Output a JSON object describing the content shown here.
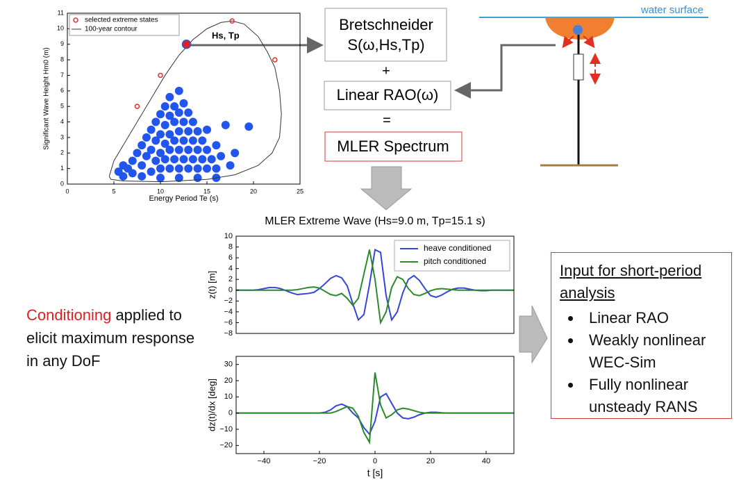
{
  "chart_data": [
    {
      "type": "scatter",
      "xlabel": "Energy Period Te (s)",
      "ylabel": "Significant Wave Height Hm0 (m)",
      "xlim": [
        0,
        25
      ],
      "ylim": [
        0,
        11
      ],
      "xticks": [
        0,
        5,
        10,
        15,
        20,
        25
      ],
      "yticks": [
        0,
        1,
        2,
        3,
        4,
        5,
        6,
        7,
        8,
        9,
        10,
        11
      ],
      "legend": "upper left",
      "annotation": "Hs, Tp",
      "points": {
        "color": "#2255ee",
        "x": [
          5.5,
          6,
          6.5,
          7,
          7,
          7.5,
          8,
          8,
          8.5,
          8.5,
          9,
          9,
          9,
          9.5,
          9.5,
          9.5,
          10,
          10,
          10,
          10,
          10.5,
          10.5,
          10.5,
          10.5,
          11,
          11,
          11,
          11,
          11,
          11.5,
          11.5,
          11.5,
          11.5,
          12,
          12,
          12,
          12,
          12,
          12.5,
          12.5,
          12.5,
          12.5,
          13,
          13,
          13,
          13,
          13.5,
          13.5,
          13.5,
          14,
          14,
          14,
          14.5,
          14.5,
          15,
          15,
          15,
          15.5,
          16,
          16,
          16.5,
          17,
          17.5,
          18,
          19.5,
          6,
          8,
          10,
          12,
          14,
          16
        ],
        "y": [
          0.8,
          1.2,
          1,
          1.5,
          0.7,
          2,
          1.2,
          2.5,
          1.8,
          3,
          0.8,
          2.2,
          3.5,
          1.5,
          2.8,
          4,
          1,
          2,
          3.2,
          4.5,
          1.6,
          2.6,
          3.8,
          5,
          1,
          2.2,
          3.2,
          4.4,
          5.6,
          1.6,
          2.8,
          4,
          5,
          1,
          2.2,
          3.4,
          4.6,
          6,
          1.6,
          2.8,
          4,
          5.2,
          1,
          2.2,
          3.4,
          4.6,
          1.6,
          2.8,
          4,
          1,
          2.2,
          3.4,
          1.6,
          2.8,
          1,
          2.2,
          3.5,
          1.6,
          1,
          2.5,
          1.8,
          3.8,
          1.2,
          2,
          3.7,
          0.5,
          0.5,
          0.4,
          0.4,
          0.4,
          0.4
        ]
      },
      "series": [
        {
          "name": "selected extreme states",
          "color": "#e03030",
          "x": [
            7.5,
            10,
            17.7,
            22.3
          ],
          "y": [
            5,
            7,
            10.5,
            8
          ]
        },
        {
          "name": "100-year contour",
          "color": "#333333",
          "x": [
            4.5,
            5,
            6,
            7.5,
            9,
            10.5,
            12,
            13.5,
            15,
            16.5,
            17.7,
            19,
            20.5,
            21.5,
            22.3,
            22.8,
            23,
            22.8,
            22,
            20.5,
            18,
            15,
            10,
            6,
            4.7,
            4.5
          ],
          "y": [
            0.5,
            1.5,
            2.5,
            4,
            5.5,
            7,
            8.3,
            9.3,
            10,
            10.4,
            10.5,
            10.3,
            9.5,
            8.5,
            7.5,
            6,
            4.5,
            3,
            2,
            1.2,
            0.6,
            0.3,
            0.15,
            0.2,
            0.3,
            0.5
          ]
        }
      ],
      "highlight": {
        "color": "#e02020",
        "x": [
          12.8
        ],
        "y": [
          9
        ]
      }
    },
    {
      "type": "line",
      "title": "MLER Extreme Wave (Hs=9.0 m, Tp=15.1 s)",
      "ylabel": "z(t) [m]",
      "legend": "upper right",
      "xlim": [
        -50,
        50
      ],
      "ylim": [
        -8,
        10
      ],
      "yticks": [
        10,
        8,
        6,
        4,
        2,
        0,
        {
          "value": -2,
          "label": "−2"
        },
        {
          "value": -4,
          "label": "−4"
        },
        {
          "value": -6,
          "label": "−6"
        },
        {
          "value": -8,
          "label": "−8"
        }
      ],
      "x": [
        -50,
        -48,
        -46,
        -44,
        -42,
        -40,
        -38,
        -36,
        -34,
        -32,
        -30,
        -28,
        -26,
        -24,
        -22,
        -20,
        -18,
        -16,
        -14,
        -12,
        -10,
        -8,
        -6,
        -4,
        -2,
        0,
        2,
        4,
        6,
        8,
        10,
        12,
        14,
        16,
        18,
        20,
        22,
        24,
        26,
        28,
        30,
        32,
        34,
        36,
        38,
        40,
        42,
        44,
        46,
        48,
        50
      ],
      "series": [
        {
          "name": "heave conditioned",
          "color": "#3344dd",
          "values": [
            0,
            0,
            0,
            0,
            0.1,
            0.3,
            0.5,
            0.5,
            0.3,
            -0.1,
            -0.5,
            -0.8,
            -0.7,
            -0.6,
            -0.4,
            0.3,
            1.2,
            2.2,
            2.7,
            2.3,
            0.8,
            -2.5,
            -5.5,
            -4.5,
            1.0,
            7.5,
            7.0,
            -1.0,
            -5.5,
            -4.0,
            -0.5,
            2.0,
            2.7,
            1.8,
            0.3,
            -1.0,
            -1.3,
            -0.9,
            -0.3,
            0.2,
            0.4,
            0.4,
            0.2,
            0,
            -0.1,
            -0.1,
            0,
            0,
            0,
            0,
            0
          ]
        },
        {
          "name": "pitch conditioned",
          "color": "#2a8a2a",
          "values": [
            0,
            0,
            0,
            0,
            0,
            0,
            0,
            0,
            0,
            0,
            0,
            0.1,
            0.3,
            0.5,
            0.6,
            0.4,
            -0.2,
            -0.8,
            -1.0,
            -0.6,
            -1.5,
            -2.8,
            -1.5,
            3.0,
            7.5,
            2.0,
            -6.0,
            -4.0,
            0.5,
            2.5,
            2.0,
            0.3,
            -0.8,
            -1.0,
            -0.6,
            -0.1,
            0.2,
            0.3,
            0.2,
            0.1,
            0,
            0,
            0,
            0,
            0,
            0,
            0,
            0,
            0,
            0,
            0
          ]
        }
      ]
    },
    {
      "type": "line",
      "ylabel": "dz(t)/dx [deg]",
      "xlabel": "t [s]",
      "xlim": [
        -50,
        50
      ],
      "ylim": [
        -25,
        35
      ],
      "xticks": [
        {
          "value": -40,
          "label": "−40"
        },
        {
          "value": -20,
          "label": "−20"
        },
        0,
        20,
        40
      ],
      "yticks": [
        30,
        20,
        10,
        0,
        {
          "value": -10,
          "label": "−10"
        },
        {
          "value": -20,
          "label": "−20"
        }
      ],
      "x": [
        -50,
        -48,
        -46,
        -44,
        -42,
        -40,
        -38,
        -36,
        -34,
        -32,
        -30,
        -28,
        -26,
        -24,
        -22,
        -20,
        -18,
        -16,
        -14,
        -12,
        -10,
        -8,
        -6,
        -4,
        -2,
        0,
        2,
        4,
        6,
        8,
        10,
        12,
        14,
        16,
        18,
        20,
        22,
        24,
        26,
        28,
        30,
        32,
        34,
        36,
        38,
        40,
        42,
        44,
        46,
        48,
        50
      ],
      "series": [
        {
          "color": "#3344dd",
          "values": [
            0,
            0,
            0,
            0,
            0,
            0,
            0,
            0,
            0,
            0,
            0,
            0,
            0,
            0,
            0,
            0,
            0.5,
            2,
            4.5,
            5.5,
            4,
            0,
            -3,
            -9,
            -13,
            -5,
            10,
            12,
            6,
            0,
            -3,
            -3.5,
            -2.5,
            -1,
            0,
            0.5,
            0.5,
            0.2,
            0,
            0,
            0,
            0,
            0,
            0,
            0,
            0,
            0,
            0,
            0,
            0,
            0
          ]
        },
        {
          "color": "#2a8a2a",
          "values": [
            0,
            0,
            0,
            0,
            0,
            0,
            0,
            0,
            0,
            0,
            0,
            0,
            0,
            0,
            0,
            0,
            0,
            0,
            1,
            2.5,
            4,
            3,
            -2,
            -12,
            -18,
            25,
            5,
            -3,
            -1,
            2,
            3,
            2.5,
            1.5,
            0.5,
            0,
            0,
            0,
            0,
            0,
            0,
            0,
            0,
            0,
            0,
            0,
            0,
            0,
            0,
            0,
            0,
            0
          ]
        }
      ]
    }
  ],
  "diagram": {
    "bretschneider": "Bretschneider",
    "spectrum_formula": "S(ω,Hs,Tp)",
    "plus": "+",
    "rao": "Linear RAO(ω)",
    "equals": "=",
    "mler": "MLER Spectrum",
    "water_surface": "water surface",
    "conditioning": {
      "highlight": "Conditioning",
      "rest": "applied to elicit maximum response in any DoF"
    },
    "input": {
      "heading": "Input for short-period analysis",
      "bullets": [
        "Linear RAO",
        "Weakly nonlinear WEC-Sim",
        "Fully nonlinear unsteady RANS"
      ]
    }
  }
}
